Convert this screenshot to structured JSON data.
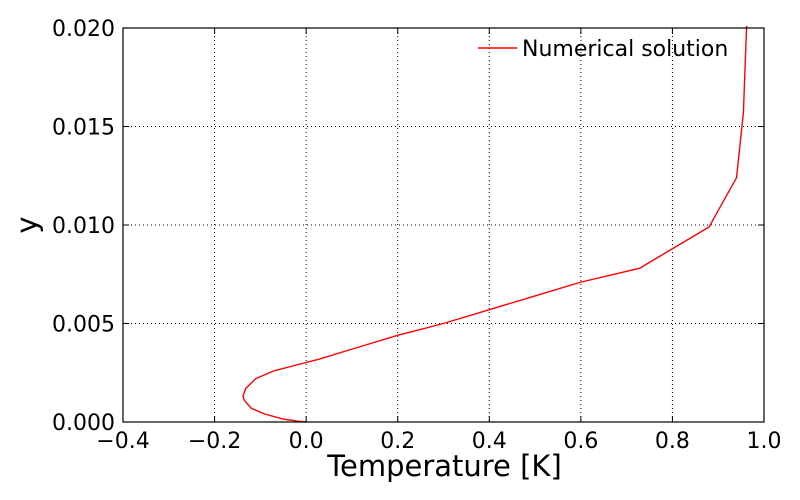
{
  "chart_data": {
    "type": "line",
    "xlabel": "Temperature [K]",
    "ylabel": "y",
    "xlim": [
      -0.4,
      1.0
    ],
    "ylim": [
      0.0,
      0.02
    ],
    "x_ticks": [
      -0.4,
      -0.2,
      0.0,
      0.2,
      0.4,
      0.6,
      0.8,
      1.0
    ],
    "x_tick_labels": [
      "−0.4",
      "−0.2",
      "0.0",
      "0.2",
      "0.4",
      "0.6",
      "0.8",
      "1.0"
    ],
    "y_ticks": [
      0.0,
      0.005,
      0.01,
      0.015,
      0.02
    ],
    "y_tick_labels": [
      "0.000",
      "0.005",
      "0.010",
      "0.015",
      "0.020"
    ],
    "grid": true,
    "legend_position": "top-right",
    "series": [
      {
        "name": "Numerical solution",
        "color": "#ff0000",
        "points": [
          [
            0.0,
            0.0
          ],
          [
            -0.02,
            5e-05
          ],
          [
            -0.05,
            0.00015
          ],
          [
            -0.09,
            0.0004
          ],
          [
            -0.12,
            0.0007
          ],
          [
            -0.135,
            0.0011
          ],
          [
            -0.138,
            0.0013
          ],
          [
            -0.132,
            0.0017
          ],
          [
            -0.11,
            0.0022
          ],
          [
            -0.07,
            0.0026
          ],
          [
            -0.02,
            0.0029
          ],
          [
            0.03,
            0.0032
          ],
          [
            0.1,
            0.0037
          ],
          [
            0.2,
            0.0044
          ],
          [
            0.3,
            0.005
          ],
          [
            0.4,
            0.0057
          ],
          [
            0.5,
            0.0064
          ],
          [
            0.6,
            0.0071
          ],
          [
            0.728,
            0.0078
          ],
          [
            0.88,
            0.0099
          ],
          [
            0.94,
            0.0124
          ],
          [
            0.955,
            0.0157
          ],
          [
            0.962,
            0.0201
          ]
        ]
      }
    ]
  }
}
